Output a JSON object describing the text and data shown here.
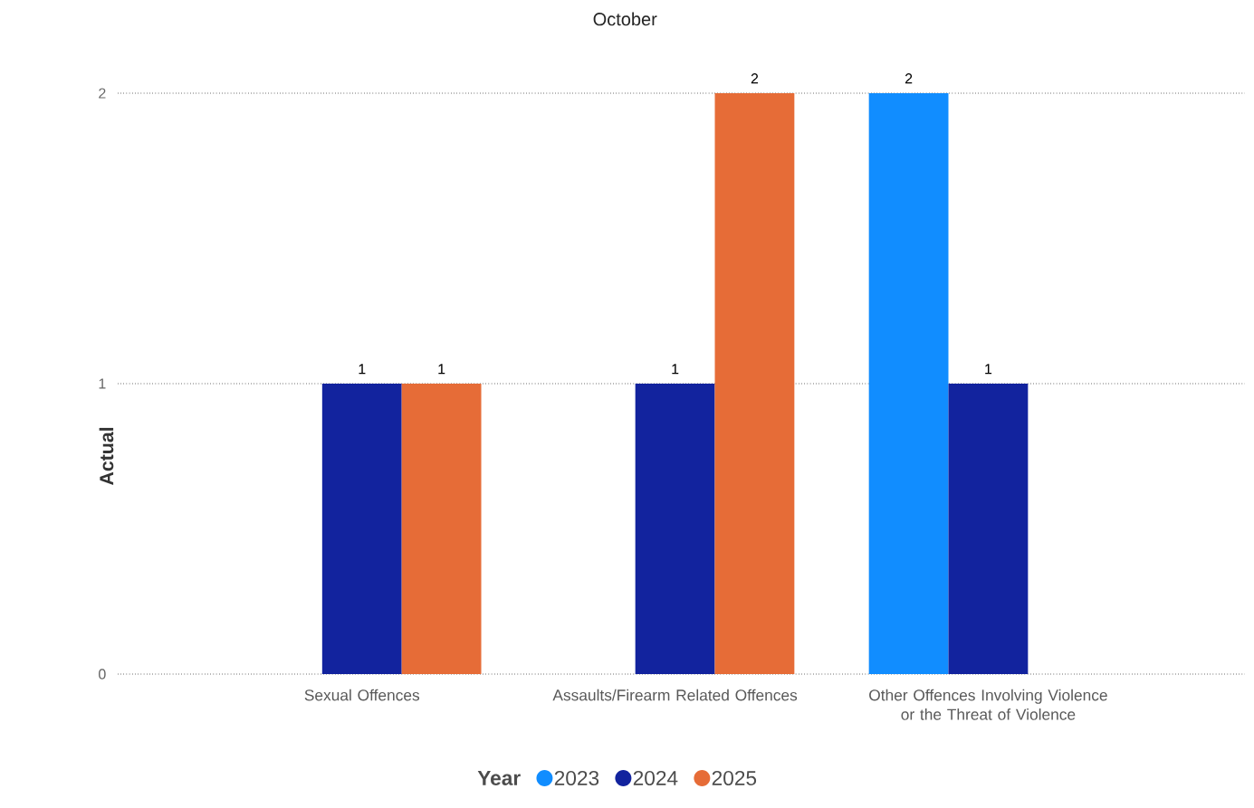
{
  "chart_data": {
    "type": "bar",
    "title": "October",
    "ylabel": "Actual",
    "legend_title": "Year",
    "categories": [
      "Sexual Offences",
      "Assaults/Firearm Related Offences",
      "Other Offences Involving Violence or the Threat of Violence"
    ],
    "series": [
      {
        "name": "2023",
        "color": "#118dff",
        "values": [
          null,
          null,
          2
        ]
      },
      {
        "name": "2024",
        "color": "#12239e",
        "values": [
          1,
          1,
          1
        ]
      },
      {
        "name": "2025",
        "color": "#e66c37",
        "values": [
          1,
          2,
          null
        ]
      }
    ],
    "ylim": [
      0,
      2
    ],
    "yticks": [
      0,
      1,
      2
    ],
    "grid": "y",
    "legend": "bottom",
    "data_labels": true
  }
}
